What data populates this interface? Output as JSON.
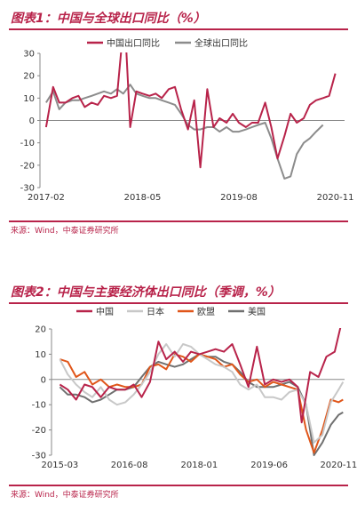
{
  "charts": [
    {
      "title": "图表1：中国与全球出口同比（%）",
      "source": "来源：Wind，中泰证券研究所"
    },
    {
      "title": "图表2：中国与主要经济体出口同比（季调，%）",
      "source": "来源：Wind，中泰证券研究所"
    }
  ],
  "chart_data": [
    {
      "type": "line",
      "title": "图表1：中国与全球出口同比（%）",
      "xlabel": "",
      "ylabel": "",
      "ylim": [
        -30,
        30
      ],
      "yticks": [
        -30,
        -20,
        -10,
        0,
        10,
        20,
        30
      ],
      "x_range": [
        2017.0,
        2020.95
      ],
      "xtick_labels": [
        {
          "label": "2017-02",
          "x": 2017.08
        },
        {
          "label": "2018-05",
          "x": 2018.33
        },
        {
          "label": "2019-08",
          "x": 2019.58
        },
        {
          "label": "2020-11",
          "x": 2020.83
        }
      ],
      "legend": "top",
      "grid": false,
      "series": [
        {
          "name": "中国出口同比",
          "color": "#b8234a",
          "points": [
            [
              2017.08,
              -3
            ],
            [
              2017.17,
              15
            ],
            [
              2017.25,
              8
            ],
            [
              2017.33,
              8
            ],
            [
              2017.42,
              10
            ],
            [
              2017.5,
              11
            ],
            [
              2017.58,
              6
            ],
            [
              2017.67,
              8
            ],
            [
              2017.75,
              7
            ],
            [
              2017.83,
              11
            ],
            [
              2017.92,
              10
            ],
            [
              2018.0,
              11
            ],
            [
              2018.05,
              30
            ],
            [
              2018.1,
              45
            ],
            [
              2018.17,
              -3
            ],
            [
              2018.25,
              13
            ],
            [
              2018.33,
              12
            ],
            [
              2018.42,
              11
            ],
            [
              2018.5,
              12
            ],
            [
              2018.58,
              10
            ],
            [
              2018.67,
              14
            ],
            [
              2018.75,
              15
            ],
            [
              2018.83,
              5
            ],
            [
              2018.92,
              -4
            ],
            [
              2019.0,
              9
            ],
            [
              2019.08,
              -21
            ],
            [
              2019.17,
              14
            ],
            [
              2019.25,
              -3
            ],
            [
              2019.33,
              1
            ],
            [
              2019.42,
              -1
            ],
            [
              2019.5,
              3
            ],
            [
              2019.58,
              -1
            ],
            [
              2019.67,
              -3
            ],
            [
              2019.75,
              -1
            ],
            [
              2019.83,
              -1
            ],
            [
              2019.92,
              8
            ],
            [
              2020.0,
              -3
            ],
            [
              2020.08,
              -17
            ],
            [
              2020.17,
              -7
            ],
            [
              2020.25,
              3
            ],
            [
              2020.33,
              -1
            ],
            [
              2020.42,
              1
            ],
            [
              2020.5,
              7
            ],
            [
              2020.58,
              9
            ],
            [
              2020.67,
              10
            ],
            [
              2020.75,
              11
            ],
            [
              2020.83,
              21
            ]
          ]
        },
        {
          "name": "全球出口同比",
          "color": "#8c8c8c",
          "points": [
            [
              2017.08,
              8
            ],
            [
              2017.17,
              13
            ],
            [
              2017.25,
              5
            ],
            [
              2017.33,
              8
            ],
            [
              2017.42,
              9
            ],
            [
              2017.5,
              9
            ],
            [
              2017.58,
              10
            ],
            [
              2017.67,
              11
            ],
            [
              2017.75,
              12
            ],
            [
              2017.83,
              13
            ],
            [
              2017.92,
              12
            ],
            [
              2018.0,
              14
            ],
            [
              2018.08,
              12
            ],
            [
              2018.17,
              16
            ],
            [
              2018.25,
              12
            ],
            [
              2018.33,
              11
            ],
            [
              2018.42,
              10
            ],
            [
              2018.5,
              10
            ],
            [
              2018.58,
              9
            ],
            [
              2018.67,
              8
            ],
            [
              2018.75,
              7
            ],
            [
              2018.83,
              3
            ],
            [
              2018.92,
              -2
            ],
            [
              2019.0,
              -4
            ],
            [
              2019.08,
              -4
            ],
            [
              2019.17,
              -3
            ],
            [
              2019.25,
              -3
            ],
            [
              2019.33,
              -5
            ],
            [
              2019.42,
              -3
            ],
            [
              2019.5,
              -5
            ],
            [
              2019.58,
              -5
            ],
            [
              2019.67,
              -4
            ],
            [
              2019.75,
              -3
            ],
            [
              2019.83,
              -2
            ],
            [
              2019.92,
              -1
            ],
            [
              2020.0,
              -8
            ],
            [
              2020.08,
              -17
            ],
            [
              2020.17,
              -26
            ],
            [
              2020.25,
              -25
            ],
            [
              2020.33,
              -15
            ],
            [
              2020.42,
              -10
            ],
            [
              2020.5,
              -8
            ],
            [
              2020.58,
              -5
            ],
            [
              2020.67,
              -2
            ]
          ]
        }
      ]
    },
    {
      "type": "line",
      "title": "图表2：中国与主要经济体出口同比（季调，%）",
      "xlabel": "",
      "ylabel": "",
      "ylim": [
        -30,
        20
      ],
      "yticks": [
        -30,
        -20,
        -10,
        0,
        10,
        20
      ],
      "x_range": [
        2015.0,
        2020.95
      ],
      "xtick_labels": [
        {
          "label": "2015-03",
          "x": 2015.17
        },
        {
          "label": "2016-08",
          "x": 2016.58
        },
        {
          "label": "2018-01",
          "x": 2018.0
        },
        {
          "label": "2019-06",
          "x": 2019.42
        },
        {
          "label": "2020-11",
          "x": 2020.83
        }
      ],
      "legend": "top",
      "grid": false,
      "series": [
        {
          "name": "中国",
          "color": "#b8234a",
          "points": [
            [
              2015.17,
              -2
            ],
            [
              2015.33,
              -4
            ],
            [
              2015.5,
              -8
            ],
            [
              2015.67,
              -2
            ],
            [
              2015.83,
              -3
            ],
            [
              2016.0,
              -7
            ],
            [
              2016.17,
              -3
            ],
            [
              2016.33,
              -4
            ],
            [
              2016.5,
              -4
            ],
            [
              2016.67,
              -2
            ],
            [
              2016.83,
              -7
            ],
            [
              2017.0,
              -1
            ],
            [
              2017.17,
              15
            ],
            [
              2017.33,
              8
            ],
            [
              2017.5,
              11
            ],
            [
              2017.67,
              7
            ],
            [
              2017.83,
              11
            ],
            [
              2018.0,
              10
            ],
            [
              2018.17,
              11
            ],
            [
              2018.33,
              12
            ],
            [
              2018.5,
              11
            ],
            [
              2018.67,
              14
            ],
            [
              2018.83,
              6
            ],
            [
              2019.0,
              -3
            ],
            [
              2019.17,
              13
            ],
            [
              2019.33,
              -2
            ],
            [
              2019.5,
              0
            ],
            [
              2019.67,
              -1
            ],
            [
              2019.83,
              0
            ],
            [
              2020.0,
              -3
            ],
            [
              2020.08,
              -17
            ],
            [
              2020.25,
              3
            ],
            [
              2020.42,
              1
            ],
            [
              2020.58,
              9
            ],
            [
              2020.75,
              11
            ],
            [
              2020.92,
              25
            ]
          ]
        },
        {
          "name": "日本",
          "color": "#c8c8c8",
          "points": [
            [
              2015.17,
              8
            ],
            [
              2015.33,
              2
            ],
            [
              2015.5,
              -2
            ],
            [
              2015.67,
              -5
            ],
            [
              2015.83,
              -7
            ],
            [
              2016.0,
              -3
            ],
            [
              2016.17,
              -8
            ],
            [
              2016.33,
              -10
            ],
            [
              2016.5,
              -9
            ],
            [
              2016.67,
              -6
            ],
            [
              2016.83,
              -2
            ],
            [
              2017.0,
              3
            ],
            [
              2017.17,
              10
            ],
            [
              2017.33,
              14
            ],
            [
              2017.5,
              9
            ],
            [
              2017.67,
              14
            ],
            [
              2017.83,
              13
            ],
            [
              2018.0,
              10
            ],
            [
              2018.17,
              8
            ],
            [
              2018.33,
              6
            ],
            [
              2018.5,
              5
            ],
            [
              2018.67,
              3
            ],
            [
              2018.83,
              -2
            ],
            [
              2019.0,
              -4
            ],
            [
              2019.17,
              -2
            ],
            [
              2019.33,
              -7
            ],
            [
              2019.5,
              -7
            ],
            [
              2019.67,
              -8
            ],
            [
              2019.83,
              -5
            ],
            [
              2020.0,
              -4
            ],
            [
              2020.17,
              -10
            ],
            [
              2020.33,
              -25
            ],
            [
              2020.5,
              -22
            ],
            [
              2020.67,
              -9
            ],
            [
              2020.83,
              -4
            ],
            [
              2020.92,
              -1
            ]
          ]
        },
        {
          "name": "欧盟",
          "color": "#e0561a",
          "points": [
            [
              2015.17,
              8
            ],
            [
              2015.33,
              7
            ],
            [
              2015.5,
              1
            ],
            [
              2015.67,
              3
            ],
            [
              2015.83,
              -2
            ],
            [
              2016.0,
              0
            ],
            [
              2016.17,
              -3
            ],
            [
              2016.33,
              -2
            ],
            [
              2016.5,
              -3
            ],
            [
              2016.67,
              -3
            ],
            [
              2016.83,
              -2
            ],
            [
              2017.0,
              5
            ],
            [
              2017.17,
              6
            ],
            [
              2017.33,
              4
            ],
            [
              2017.5,
              10
            ],
            [
              2017.67,
              9
            ],
            [
              2017.83,
              7
            ],
            [
              2018.0,
              10
            ],
            [
              2018.17,
              9
            ],
            [
              2018.33,
              8
            ],
            [
              2018.5,
              5
            ],
            [
              2018.67,
              6
            ],
            [
              2018.83,
              2
            ],
            [
              2019.0,
              -1
            ],
            [
              2019.17,
              0
            ],
            [
              2019.33,
              -3
            ],
            [
              2019.5,
              -1
            ],
            [
              2019.67,
              -2
            ],
            [
              2019.83,
              -3
            ],
            [
              2020.0,
              -4
            ],
            [
              2020.17,
              -20
            ],
            [
              2020.33,
              -29
            ],
            [
              2020.5,
              -20
            ],
            [
              2020.67,
              -8
            ],
            [
              2020.83,
              -9
            ],
            [
              2020.92,
              -8
            ]
          ]
        },
        {
          "name": "美国",
          "color": "#707070",
          "points": [
            [
              2015.17,
              -3
            ],
            [
              2015.33,
              -6
            ],
            [
              2015.5,
              -6
            ],
            [
              2015.67,
              -7
            ],
            [
              2015.83,
              -9
            ],
            [
              2016.0,
              -8
            ],
            [
              2016.17,
              -6
            ],
            [
              2016.33,
              -4
            ],
            [
              2016.5,
              -4
            ],
            [
              2016.67,
              -3
            ],
            [
              2016.83,
              1
            ],
            [
              2017.0,
              5
            ],
            [
              2017.17,
              7
            ],
            [
              2017.33,
              6
            ],
            [
              2017.5,
              5
            ],
            [
              2017.67,
              6
            ],
            [
              2017.83,
              8
            ],
            [
              2018.0,
              10
            ],
            [
              2018.17,
              9
            ],
            [
              2018.33,
              9
            ],
            [
              2018.5,
              7
            ],
            [
              2018.67,
              6
            ],
            [
              2018.83,
              3
            ],
            [
              2019.0,
              -1
            ],
            [
              2019.17,
              -3
            ],
            [
              2019.33,
              -3
            ],
            [
              2019.5,
              -3
            ],
            [
              2019.67,
              -2
            ],
            [
              2019.83,
              -1
            ],
            [
              2020.0,
              -3
            ],
            [
              2020.17,
              -10
            ],
            [
              2020.33,
              -30
            ],
            [
              2020.5,
              -25
            ],
            [
              2020.67,
              -18
            ],
            [
              2020.83,
              -14
            ],
            [
              2020.92,
              -13
            ]
          ]
        }
      ]
    }
  ]
}
